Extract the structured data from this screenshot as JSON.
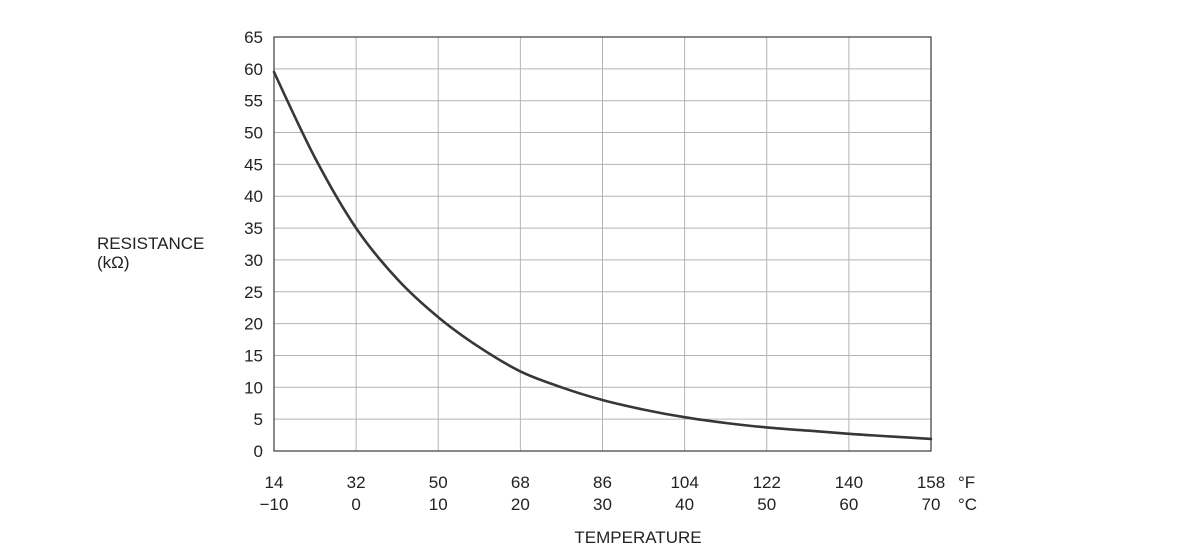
{
  "chart_data": {
    "type": "line",
    "title": "",
    "xlabel": "TEMPERATURE",
    "ylabel": "RESISTANCE",
    "ylabel_unit": "(kΩ)",
    "x_unit_f": "°F",
    "x_unit_c": "°C",
    "x_ticks_f": [
      "14",
      "32",
      "50",
      "68",
      "86",
      "104",
      "122",
      "140",
      "158"
    ],
    "x_ticks_c": [
      "−10",
      "0",
      "10",
      "20",
      "30",
      "40",
      "50",
      "60",
      "70"
    ],
    "x_tick_values_c": [
      -10,
      0,
      10,
      20,
      30,
      40,
      50,
      60,
      70
    ],
    "y_ticks": [
      "0",
      "5",
      "10",
      "15",
      "20",
      "25",
      "30",
      "35",
      "40",
      "45",
      "50",
      "55",
      "60",
      "65"
    ],
    "xlim": [
      -10,
      70
    ],
    "ylim": [
      0,
      65
    ],
    "grid": true,
    "series": [
      {
        "x": [
          -10,
          -5,
          0,
          5,
          10,
          15,
          20,
          25,
          30,
          35,
          40,
          45,
          50,
          55,
          60,
          65,
          70
        ],
        "y": [
          59.5,
          46.0,
          35.0,
          27.0,
          21.0,
          16.3,
          12.5,
          10.0,
          8.0,
          6.5,
          5.3,
          4.4,
          3.7,
          3.2,
          2.7,
          2.3,
          1.9
        ],
        "color": "#3a3536"
      }
    ]
  }
}
